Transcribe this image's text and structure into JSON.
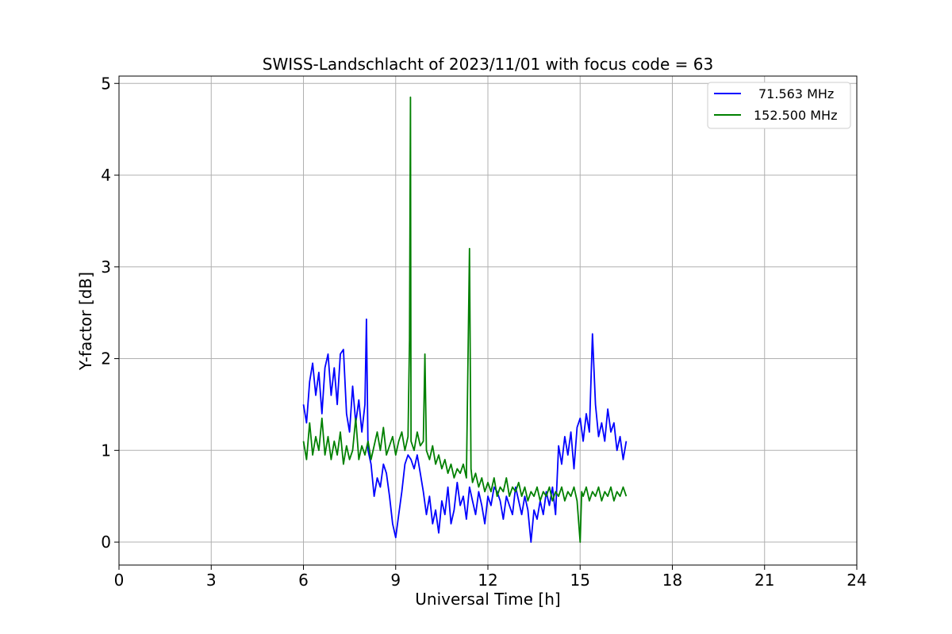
{
  "chart_data": {
    "type": "line",
    "title": "SWISS-Landschlacht of 2023/11/01 with focus code = 63",
    "xlabel": "Universal Time [h]",
    "ylabel": "Y-factor [dB]",
    "xlim": [
      0,
      24
    ],
    "ylim": [
      -0.25,
      5.08
    ],
    "xticks": [
      "0",
      "3",
      "6",
      "9",
      "12",
      "15",
      "18",
      "21",
      "24"
    ],
    "yticks": [
      "0",
      "1",
      "2",
      "3",
      "4",
      "5"
    ],
    "grid": true,
    "legend_position": "top-right",
    "colors": {
      "series1": "#0000ff",
      "series2": "#008000"
    },
    "series": [
      {
        "name": "71.563 MHz",
        "color": "#0000ff",
        "points": [
          [
            6.0,
            1.5
          ],
          [
            6.1,
            1.3
          ],
          [
            6.2,
            1.75
          ],
          [
            6.3,
            1.95
          ],
          [
            6.4,
            1.6
          ],
          [
            6.5,
            1.85
          ],
          [
            6.6,
            1.4
          ],
          [
            6.7,
            1.9
          ],
          [
            6.8,
            2.05
          ],
          [
            6.9,
            1.6
          ],
          [
            7.0,
            1.9
          ],
          [
            7.1,
            1.5
          ],
          [
            7.2,
            2.05
          ],
          [
            7.3,
            2.1
          ],
          [
            7.4,
            1.4
          ],
          [
            7.5,
            1.2
          ],
          [
            7.6,
            1.7
          ],
          [
            7.7,
            1.3
          ],
          [
            7.8,
            1.55
          ],
          [
            7.9,
            1.2
          ],
          [
            8.0,
            1.5
          ],
          [
            8.05,
            2.43
          ],
          [
            8.1,
            1.0
          ],
          [
            8.2,
            0.85
          ],
          [
            8.3,
            0.5
          ],
          [
            8.4,
            0.7
          ],
          [
            8.5,
            0.6
          ],
          [
            8.6,
            0.85
          ],
          [
            8.7,
            0.75
          ],
          [
            8.8,
            0.5
          ],
          [
            8.9,
            0.2
          ],
          [
            9.0,
            0.05
          ],
          [
            9.1,
            0.3
          ],
          [
            9.2,
            0.55
          ],
          [
            9.3,
            0.85
          ],
          [
            9.4,
            0.95
          ],
          [
            9.5,
            0.9
          ],
          [
            9.6,
            0.8
          ],
          [
            9.7,
            0.95
          ],
          [
            9.8,
            0.75
          ],
          [
            9.9,
            0.55
          ],
          [
            10.0,
            0.3
          ],
          [
            10.1,
            0.5
          ],
          [
            10.2,
            0.2
          ],
          [
            10.3,
            0.35
          ],
          [
            10.4,
            0.1
          ],
          [
            10.5,
            0.45
          ],
          [
            10.6,
            0.3
          ],
          [
            10.7,
            0.6
          ],
          [
            10.8,
            0.2
          ],
          [
            10.9,
            0.35
          ],
          [
            11.0,
            0.65
          ],
          [
            11.1,
            0.4
          ],
          [
            11.2,
            0.5
          ],
          [
            11.3,
            0.25
          ],
          [
            11.4,
            0.6
          ],
          [
            11.5,
            0.45
          ],
          [
            11.6,
            0.3
          ],
          [
            11.7,
            0.55
          ],
          [
            11.8,
            0.4
          ],
          [
            11.9,
            0.2
          ],
          [
            12.0,
            0.5
          ],
          [
            12.1,
            0.4
          ],
          [
            12.2,
            0.6
          ],
          [
            12.3,
            0.55
          ],
          [
            12.4,
            0.45
          ],
          [
            12.5,
            0.25
          ],
          [
            12.6,
            0.5
          ],
          [
            12.7,
            0.4
          ],
          [
            12.8,
            0.3
          ],
          [
            12.9,
            0.6
          ],
          [
            13.0,
            0.45
          ],
          [
            13.1,
            0.3
          ],
          [
            13.2,
            0.5
          ],
          [
            13.3,
            0.35
          ],
          [
            13.4,
            0.0
          ],
          [
            13.5,
            0.35
          ],
          [
            13.6,
            0.25
          ],
          [
            13.7,
            0.45
          ],
          [
            13.8,
            0.3
          ],
          [
            13.9,
            0.55
          ],
          [
            14.0,
            0.4
          ],
          [
            14.1,
            0.6
          ],
          [
            14.2,
            0.3
          ],
          [
            14.3,
            1.05
          ],
          [
            14.4,
            0.85
          ],
          [
            14.5,
            1.15
          ],
          [
            14.6,
            0.95
          ],
          [
            14.7,
            1.2
          ],
          [
            14.8,
            0.8
          ],
          [
            14.9,
            1.25
          ],
          [
            15.0,
            1.35
          ],
          [
            15.1,
            1.1
          ],
          [
            15.2,
            1.4
          ],
          [
            15.3,
            1.2
          ],
          [
            15.4,
            2.27
          ],
          [
            15.5,
            1.5
          ],
          [
            15.6,
            1.15
          ],
          [
            15.7,
            1.3
          ],
          [
            15.8,
            1.1
          ],
          [
            15.9,
            1.45
          ],
          [
            16.0,
            1.2
          ],
          [
            16.1,
            1.3
          ],
          [
            16.2,
            1.0
          ],
          [
            16.3,
            1.15
          ],
          [
            16.4,
            0.9
          ],
          [
            16.5,
            1.1
          ]
        ]
      },
      {
        "name": "152.500 MHz",
        "color": "#008000",
        "points": [
          [
            6.0,
            1.1
          ],
          [
            6.1,
            0.9
          ],
          [
            6.2,
            1.3
          ],
          [
            6.3,
            0.95
          ],
          [
            6.4,
            1.15
          ],
          [
            6.5,
            1.0
          ],
          [
            6.6,
            1.35
          ],
          [
            6.7,
            0.95
          ],
          [
            6.8,
            1.15
          ],
          [
            6.9,
            0.9
          ],
          [
            7.0,
            1.1
          ],
          [
            7.1,
            0.95
          ],
          [
            7.2,
            1.2
          ],
          [
            7.3,
            0.85
          ],
          [
            7.4,
            1.05
          ],
          [
            7.5,
            0.9
          ],
          [
            7.6,
            1.0
          ],
          [
            7.7,
            1.35
          ],
          [
            7.8,
            0.9
          ],
          [
            7.9,
            1.05
          ],
          [
            8.0,
            0.95
          ],
          [
            8.1,
            1.1
          ],
          [
            8.2,
            0.9
          ],
          [
            8.3,
            1.05
          ],
          [
            8.4,
            1.2
          ],
          [
            8.5,
            1.0
          ],
          [
            8.6,
            1.25
          ],
          [
            8.7,
            0.95
          ],
          [
            8.8,
            1.05
          ],
          [
            8.9,
            1.15
          ],
          [
            9.0,
            0.95
          ],
          [
            9.1,
            1.1
          ],
          [
            9.2,
            1.2
          ],
          [
            9.3,
            1.0
          ],
          [
            9.4,
            1.15
          ],
          [
            9.45,
            2.2
          ],
          [
            9.48,
            4.85
          ],
          [
            9.5,
            1.1
          ],
          [
            9.6,
            1.0
          ],
          [
            9.7,
            1.2
          ],
          [
            9.8,
            1.05
          ],
          [
            9.9,
            1.1
          ],
          [
            9.95,
            2.05
          ],
          [
            10.0,
            1.0
          ],
          [
            10.1,
            0.9
          ],
          [
            10.2,
            1.05
          ],
          [
            10.3,
            0.85
          ],
          [
            10.4,
            0.95
          ],
          [
            10.5,
            0.8
          ],
          [
            10.6,
            0.9
          ],
          [
            10.7,
            0.75
          ],
          [
            10.8,
            0.85
          ],
          [
            10.9,
            0.7
          ],
          [
            11.0,
            0.8
          ],
          [
            11.1,
            0.75
          ],
          [
            11.2,
            0.85
          ],
          [
            11.3,
            0.7
          ],
          [
            11.4,
            3.2
          ],
          [
            11.45,
            0.8
          ],
          [
            11.5,
            0.65
          ],
          [
            11.6,
            0.75
          ],
          [
            11.7,
            0.6
          ],
          [
            11.8,
            0.7
          ],
          [
            11.9,
            0.55
          ],
          [
            12.0,
            0.65
          ],
          [
            12.1,
            0.55
          ],
          [
            12.2,
            0.7
          ],
          [
            12.3,
            0.5
          ],
          [
            12.4,
            0.6
          ],
          [
            12.5,
            0.55
          ],
          [
            12.6,
            0.7
          ],
          [
            12.7,
            0.5
          ],
          [
            12.8,
            0.6
          ],
          [
            12.9,
            0.55
          ],
          [
            13.0,
            0.65
          ],
          [
            13.1,
            0.5
          ],
          [
            13.2,
            0.6
          ],
          [
            13.3,
            0.45
          ],
          [
            13.4,
            0.55
          ],
          [
            13.5,
            0.5
          ],
          [
            13.6,
            0.6
          ],
          [
            13.7,
            0.45
          ],
          [
            13.8,
            0.55
          ],
          [
            13.9,
            0.5
          ],
          [
            14.0,
            0.6
          ],
          [
            14.1,
            0.45
          ],
          [
            14.2,
            0.55
          ],
          [
            14.3,
            0.5
          ],
          [
            14.4,
            0.6
          ],
          [
            14.5,
            0.45
          ],
          [
            14.6,
            0.55
          ],
          [
            14.7,
            0.5
          ],
          [
            14.8,
            0.6
          ],
          [
            14.9,
            0.45
          ],
          [
            15.0,
            0.0
          ],
          [
            15.05,
            0.55
          ],
          [
            15.1,
            0.5
          ],
          [
            15.2,
            0.6
          ],
          [
            15.3,
            0.45
          ],
          [
            15.4,
            0.55
          ],
          [
            15.5,
            0.5
          ],
          [
            15.6,
            0.6
          ],
          [
            15.7,
            0.45
          ],
          [
            15.8,
            0.55
          ],
          [
            15.9,
            0.5
          ],
          [
            16.0,
            0.6
          ],
          [
            16.1,
            0.45
          ],
          [
            16.2,
            0.55
          ],
          [
            16.3,
            0.5
          ],
          [
            16.4,
            0.6
          ],
          [
            16.5,
            0.5
          ]
        ]
      }
    ]
  }
}
